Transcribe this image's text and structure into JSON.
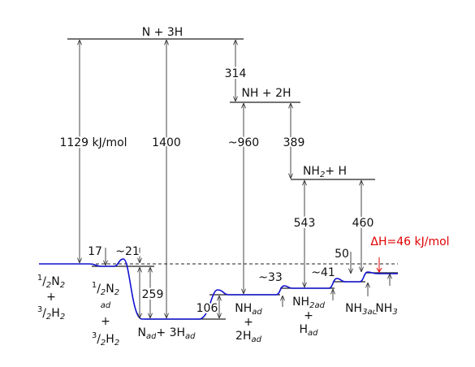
{
  "labels": {
    "n_3h": [
      {
        "t": "N + 3H"
      }
    ],
    "nh_2h": [
      {
        "t": "NH + 2H"
      }
    ],
    "nh2_h": [
      {
        "t": "NH"
      },
      {
        "t": "2",
        "s": "sub"
      },
      {
        "t": "+ H"
      }
    ],
    "left_1": [
      {
        "t": "1",
        "s": "sup"
      },
      {
        "t": "/"
      },
      {
        "t": "2",
        "s": "sub"
      },
      {
        "t": "N"
      },
      {
        "t": "2",
        "s": "sub"
      }
    ],
    "left_2": [
      {
        "t": "+"
      }
    ],
    "left_3": [
      {
        "t": "3",
        "s": "sup"
      },
      {
        "t": "/"
      },
      {
        "t": "2",
        "s": "sub"
      },
      {
        "t": "H"
      },
      {
        "t": "2",
        "s": "sub"
      }
    ],
    "n2ad_1": [
      {
        "t": "1",
        "s": "sup"
      },
      {
        "t": "/"
      },
      {
        "t": "2",
        "s": "sub"
      },
      {
        "t": "N"
      },
      {
        "t": "2",
        "s": "sub"
      }
    ],
    "n2ad_2": [
      {
        "t": "ad",
        "s": "sub"
      }
    ],
    "n2ad_3": [
      {
        "t": "+"
      }
    ],
    "n2ad_4": [
      {
        "t": "3",
        "s": "sup"
      },
      {
        "t": "/"
      },
      {
        "t": "2",
        "s": "sub"
      },
      {
        "t": "H"
      },
      {
        "t": "2",
        "s": "sub"
      }
    ],
    "nad": [
      {
        "t": "N"
      },
      {
        "t": "ad",
        "s": "sub"
      },
      {
        "t": "+ 3H"
      },
      {
        "t": "ad",
        "s": "sub"
      }
    ],
    "nhad_1": [
      {
        "t": "NH"
      },
      {
        "t": "ad",
        "s": "sub"
      }
    ],
    "nhad_2": [
      {
        "t": "+"
      }
    ],
    "nhad_3": [
      {
        "t": "2H"
      },
      {
        "t": "ad",
        "s": "sub"
      }
    ],
    "nh2ad_1": [
      {
        "t": "NH"
      },
      {
        "t": "2ad",
        "s": "sub"
      }
    ],
    "nh2ad_2": [
      {
        "t": "+"
      }
    ],
    "nh2ad_3": [
      {
        "t": "H"
      },
      {
        "t": "ad",
        "s": "sub"
      }
    ],
    "nh3ad": [
      {
        "t": "NH"
      },
      {
        "t": "3ad",
        "s": "sub"
      }
    ],
    "nh3": [
      {
        "t": "NH"
      },
      {
        "t": "3",
        "s": "sub"
      }
    ]
  },
  "energies": {
    "e1129": "1129 kJ/mol",
    "e1400": "1400",
    "e314": "314",
    "e960": "~960",
    "e389": "389",
    "e543": "543",
    "e460": "460",
    "e17": "17",
    "e21": "~21",
    "e259": "259",
    "e106": "106",
    "e33": "~33",
    "e41": "~41",
    "e50": "50",
    "dh": "ΔH=46 kJ/mol"
  }
}
